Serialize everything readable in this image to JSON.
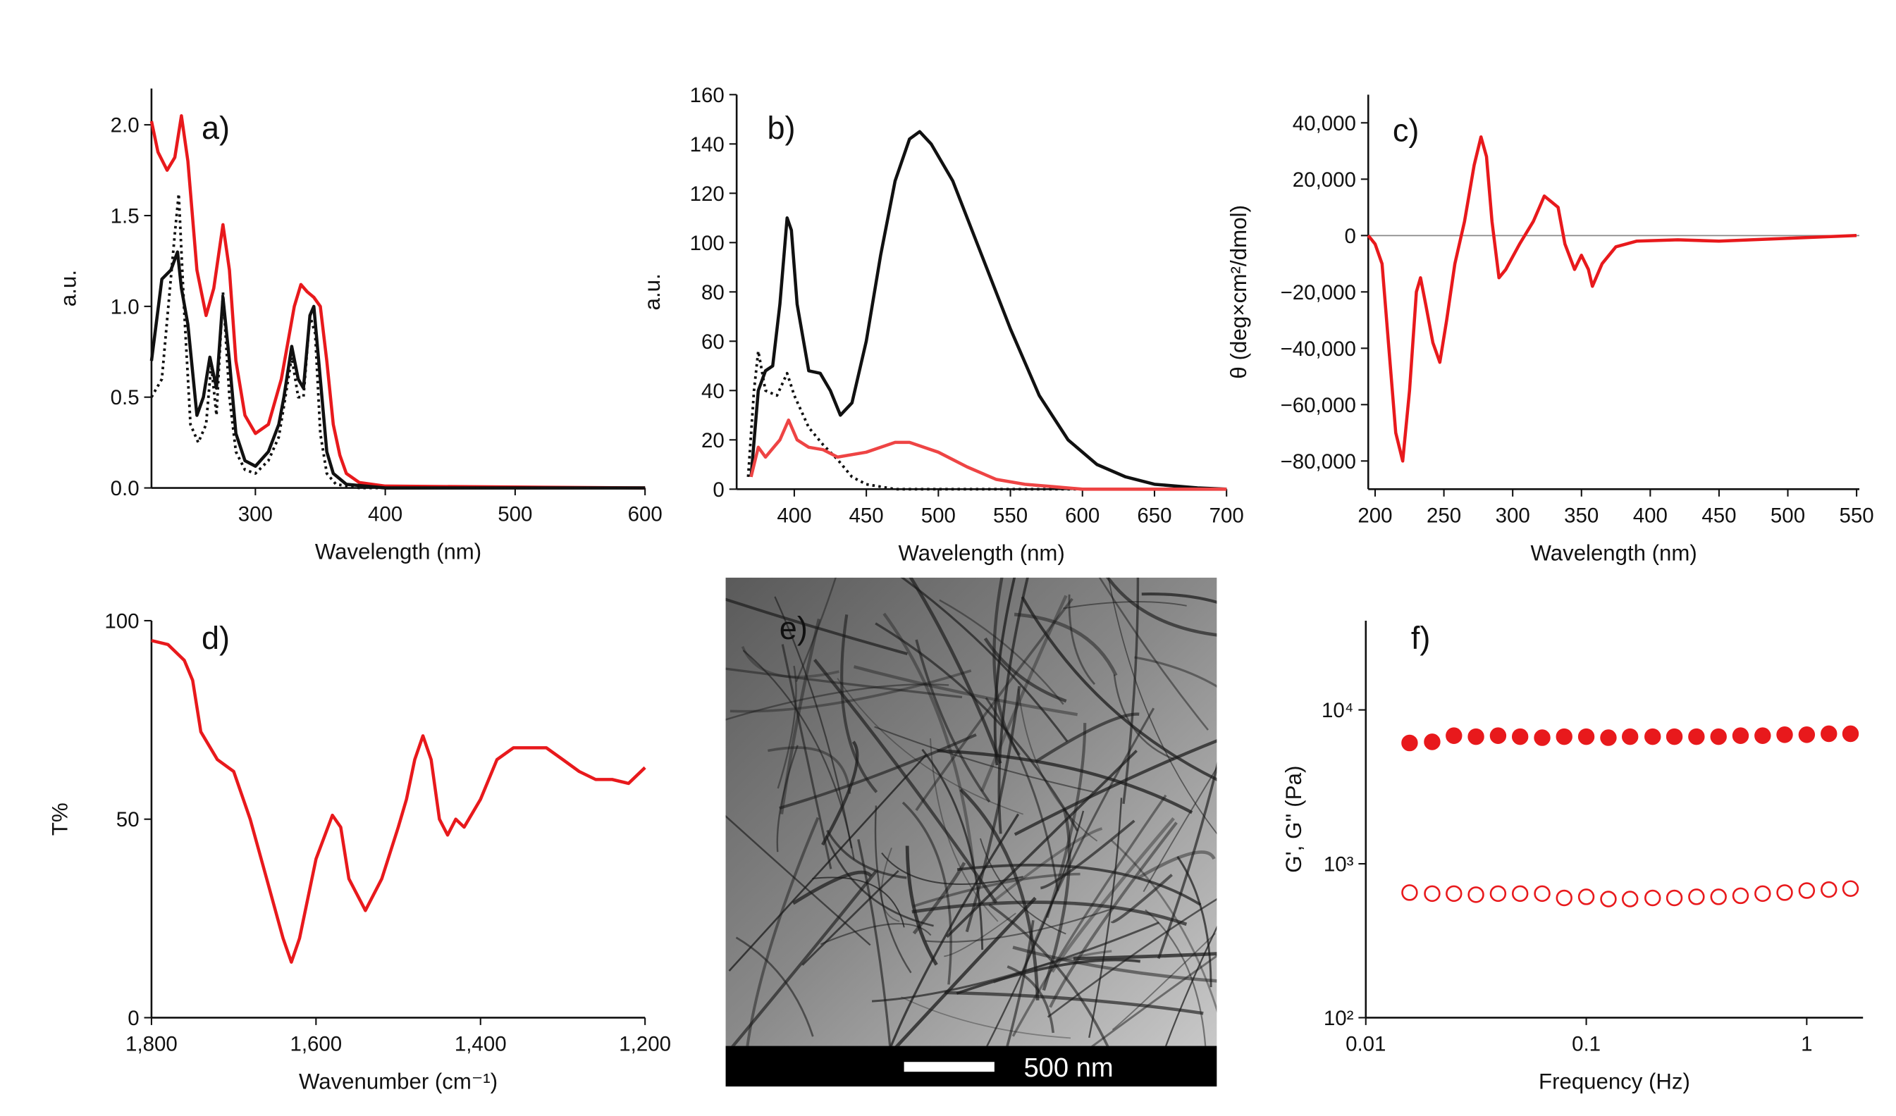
{
  "chart_data": [
    {
      "type": "line",
      "annotation": "a)",
      "x_label": "Wavelength (nm)",
      "y_label": "a.u.",
      "xlim": [
        220,
        600
      ],
      "xticks": [
        300,
        400,
        500,
        600
      ],
      "ylim": [
        0,
        2.2
      ],
      "yticks": [
        {
          "value": 0,
          "label": "0.0"
        },
        0.5,
        {
          "value": 1,
          "label": "1.0"
        },
        1.5,
        {
          "value": 2,
          "label": "2.0"
        }
      ],
      "series": [
        {
          "color": "#e8191c",
          "dash": "solid",
          "x": [
            220,
            225,
            232,
            238,
            243,
            248,
            255,
            262,
            268,
            275,
            280,
            285,
            292,
            300,
            310,
            320,
            330,
            335,
            340,
            345,
            350,
            355,
            360,
            365,
            370,
            380,
            400,
            600
          ],
          "values": [
            2.02,
            1.85,
            1.75,
            1.82,
            2.05,
            1.8,
            1.2,
            0.95,
            1.1,
            1.45,
            1.2,
            0.7,
            0.4,
            0.3,
            0.35,
            0.6,
            1.0,
            1.12,
            1.08,
            1.05,
            1.0,
            0.7,
            0.35,
            0.18,
            0.08,
            0.03,
            0.01,
            0
          ]
        },
        {
          "color": "#111111",
          "dash": "solid",
          "x": [
            220,
            228,
            235,
            240,
            243,
            248,
            255,
            260,
            265,
            270,
            275,
            280,
            285,
            292,
            300,
            310,
            318,
            322,
            328,
            333,
            337,
            342,
            345,
            350,
            355,
            360,
            370,
            400,
            600
          ],
          "values": [
            0.7,
            1.15,
            1.2,
            1.3,
            1.1,
            0.9,
            0.4,
            0.5,
            0.72,
            0.55,
            1.05,
            0.7,
            0.3,
            0.15,
            0.12,
            0.2,
            0.35,
            0.5,
            0.78,
            0.6,
            0.55,
            0.95,
            1.0,
            0.6,
            0.2,
            0.08,
            0.02,
            0,
            0
          ]
        },
        {
          "color": "#111111",
          "dash": "dotted",
          "x": [
            220,
            228,
            233,
            238,
            241,
            245,
            250,
            256,
            262,
            266,
            270,
            275,
            280,
            285,
            292,
            300,
            310,
            318,
            322,
            328,
            333,
            337,
            342,
            346,
            350,
            355,
            362,
            380,
            600
          ],
          "values": [
            0.5,
            0.6,
            1.0,
            1.4,
            1.62,
            1.0,
            0.35,
            0.25,
            0.35,
            0.68,
            0.4,
            1.08,
            0.5,
            0.2,
            0.1,
            0.08,
            0.15,
            0.28,
            0.45,
            0.72,
            0.5,
            0.5,
            0.95,
            0.85,
            0.3,
            0.08,
            0.02,
            0,
            0
          ]
        }
      ]
    },
    {
      "type": "line",
      "annotation": "b)",
      "x_label": "Wavelength (nm)",
      "y_label": "a.u.",
      "xlim": [
        360,
        700
      ],
      "xticks": [
        400,
        450,
        500,
        550,
        600,
        650,
        700
      ],
      "ylim": [
        0,
        160
      ],
      "yticks": [
        0,
        20,
        40,
        60,
        80,
        100,
        120,
        140,
        160
      ],
      "series": [
        {
          "color": "#111111",
          "dash": "solid",
          "x": [
            370,
            375,
            380,
            385,
            390,
            395,
            398,
            402,
            410,
            418,
            425,
            432,
            440,
            450,
            460,
            470,
            480,
            487,
            495,
            510,
            530,
            550,
            570,
            590,
            610,
            630,
            650,
            680,
            700
          ],
          "values": [
            5,
            40,
            48,
            50,
            75,
            110,
            105,
            75,
            48,
            47,
            40,
            30,
            35,
            60,
            95,
            125,
            142,
            145,
            140,
            125,
            95,
            65,
            38,
            20,
            10,
            5,
            2,
            0.5,
            0
          ]
        },
        {
          "color": "#111111",
          "dash": "dotted",
          "x": [
            368,
            372,
            375,
            380,
            388,
            395,
            400,
            410,
            420,
            430,
            440,
            450,
            470,
            700
          ],
          "values": [
            5,
            40,
            56,
            40,
            38,
            47,
            38,
            25,
            18,
            12,
            5,
            2,
            0,
            0
          ]
        },
        {
          "color": "#ee4444",
          "dash": "solid",
          "x": [
            370,
            375,
            380,
            390,
            396,
            402,
            410,
            420,
            430,
            450,
            470,
            480,
            500,
            520,
            540,
            560,
            580,
            600,
            700
          ],
          "values": [
            5,
            17,
            13,
            20,
            28,
            20,
            17,
            16,
            13,
            15,
            19,
            19,
            15,
            9,
            4,
            2,
            1,
            0,
            0
          ]
        }
      ]
    },
    {
      "type": "line",
      "annotation": "c)",
      "x_label": "Wavelength (nm)",
      "y_label": "θ (deg×cm²/dmol)",
      "zero_line": true,
      "xlim": [
        195,
        552
      ],
      "xticks": [
        200,
        250,
        300,
        350,
        400,
        450,
        500,
        550
      ],
      "ylim": [
        -90000,
        50000
      ],
      "yticks": [
        {
          "value": -80000,
          "label": "−80,000"
        },
        {
          "value": -60000,
          "label": "−60,000"
        },
        {
          "value": -40000,
          "label": "−40,000"
        },
        {
          "value": -20000,
          "label": "−20,000"
        },
        0,
        {
          "value": 20000,
          "label": "20,000"
        },
        {
          "value": 40000,
          "label": "40,000"
        }
      ],
      "series": [
        {
          "color": "#e8191c",
          "dash": "solid",
          "x": [
            195,
            200,
            205,
            210,
            215,
            220,
            225,
            230,
            233,
            237,
            242,
            247,
            252,
            258,
            265,
            272,
            277,
            281,
            285,
            290,
            295,
            305,
            315,
            323,
            328,
            333,
            338,
            345,
            350,
            355,
            358,
            365,
            375,
            390,
            420,
            450,
            500,
            550
          ],
          "values": [
            0,
            -3000,
            -10000,
            -40000,
            -70000,
            -80000,
            -55000,
            -20000,
            -15000,
            -25000,
            -38000,
            -45000,
            -30000,
            -10000,
            5000,
            25000,
            35000,
            28000,
            5000,
            -15000,
            -12000,
            -3000,
            5000,
            14000,
            12000,
            10000,
            -3000,
            -12000,
            -7000,
            -12000,
            -18000,
            -10000,
            -4000,
            -2000,
            -1500,
            -2000,
            -1000,
            0
          ]
        }
      ]
    },
    {
      "type": "line",
      "annotation": "d)",
      "x_label": "Wavenumber (cm⁻¹)",
      "y_label": "T%",
      "xlim": [
        1800,
        1200
      ],
      "xticks": [
        {
          "value": 1800,
          "label": "1,800"
        },
        {
          "value": 1600,
          "label": "1,600"
        },
        {
          "value": 1400,
          "label": "1,400"
        },
        {
          "value": 1200,
          "label": "1,200"
        }
      ],
      "ylim": [
        0,
        100
      ],
      "yticks": [
        0,
        50,
        100
      ],
      "series": [
        {
          "color": "#e8191c",
          "dash": "solid",
          "x": [
            1800,
            1780,
            1760,
            1750,
            1740,
            1720,
            1700,
            1680,
            1660,
            1640,
            1630,
            1620,
            1600,
            1580,
            1570,
            1560,
            1540,
            1520,
            1500,
            1490,
            1480,
            1470,
            1460,
            1450,
            1440,
            1430,
            1420,
            1400,
            1380,
            1360,
            1340,
            1320,
            1300,
            1280,
            1260,
            1240,
            1220,
            1200
          ],
          "values": [
            95,
            94,
            90,
            85,
            72,
            65,
            62,
            50,
            35,
            20,
            14,
            20,
            40,
            51,
            48,
            35,
            27,
            35,
            48,
            55,
            65,
            71,
            65,
            50,
            46,
            50,
            48,
            55,
            65,
            68,
            68,
            68,
            65,
            62,
            60,
            60,
            59,
            63
          ]
        }
      ]
    },
    {
      "type": "image",
      "annotation": "e)",
      "scale_bar_label": "500 nm"
    },
    {
      "type": "scatter",
      "annotation": "f)",
      "x_label": "Frequency (Hz)",
      "y_label": "G', G'' (Pa)",
      "xlog": true,
      "ylog": true,
      "xlim": [
        0.01,
        1.8
      ],
      "xticks": [
        0.01,
        0.1,
        1
      ],
      "ylim": [
        100,
        38000
      ],
      "yticks": [
        {
          "value": 100,
          "label": "10²"
        },
        {
          "value": 1000,
          "label": "10³"
        },
        {
          "value": 10000,
          "label": "10⁴"
        }
      ],
      "x": [
        0.0158,
        0.02,
        0.0251,
        0.0316,
        0.0398,
        0.0501,
        0.0631,
        0.0794,
        0.1,
        0.126,
        0.158,
        0.2,
        0.251,
        0.316,
        0.398,
        0.501,
        0.631,
        0.794,
        1,
        1.26,
        1.58
      ],
      "series": [
        {
          "color": "#e8191c",
          "marker": "filled",
          "values": [
            6100,
            6200,
            6800,
            6700,
            6800,
            6700,
            6600,
            6700,
            6700,
            6600,
            6700,
            6700,
            6700,
            6700,
            6700,
            6800,
            6800,
            6900,
            6900,
            7000,
            7000
          ]
        },
        {
          "color": "#e8191c",
          "marker": "open",
          "values": [
            650,
            640,
            640,
            630,
            640,
            640,
            640,
            600,
            610,
            590,
            590,
            600,
            600,
            610,
            610,
            620,
            640,
            650,
            670,
            680,
            690
          ]
        }
      ]
    }
  ]
}
